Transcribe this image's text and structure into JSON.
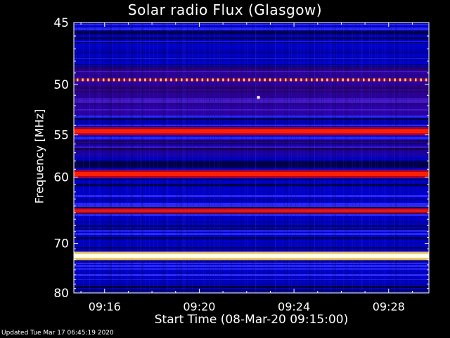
{
  "chart_data": {
    "type": "heatmap",
    "title": "Solar radio Flux (Glasgow)",
    "xlabel": "Start Time (08-Mar-20 09:15:00)",
    "ylabel": "Frequency [MHz]",
    "x_ticks": [
      "09:16",
      "09:20",
      "09:24",
      "09:28"
    ],
    "x_tick_minutes": [
      1,
      5,
      9,
      13
    ],
    "xlim_minutes": [
      -0.3,
      14.7
    ],
    "y_ticks": [
      45,
      50,
      55,
      60,
      70,
      80
    ],
    "ylim": [
      45,
      80
    ],
    "y_scale": "reciprocal",
    "colorscale": [
      "#000030",
      "#0000c8",
      "#3030ff",
      "#b00030",
      "#ff2000",
      "#ffd060",
      "#ffffe0"
    ],
    "bands": [
      {
        "freq": 49.6,
        "intensity": "pulsed"
      },
      {
        "freq": 54.6,
        "intensity": "high"
      },
      {
        "freq": 59.6,
        "intensity": "high"
      },
      {
        "freq": 64.7,
        "intensity": "medium"
      },
      {
        "freq": 72.3,
        "intensity": "saturated"
      }
    ],
    "spots": [
      {
        "minute": 7.5,
        "freq": 51.2
      }
    ]
  },
  "footer": "Updated Tue Mar 17 06:45:19 2020"
}
